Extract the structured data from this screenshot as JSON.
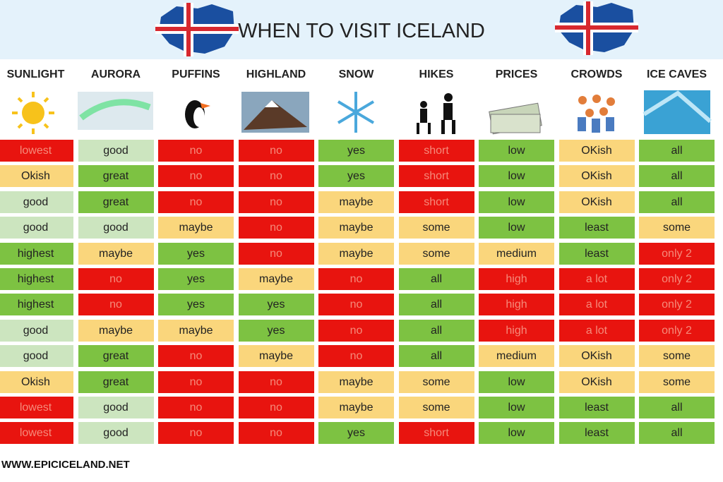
{
  "header": {
    "title": "WHEN TO VISIT ICELAND"
  },
  "table": {
    "columns": [
      "SUNLIGHT",
      "AURORA",
      "PUFFINS",
      "HIGHLAND",
      "SNOW",
      "HIKES",
      "PRICES",
      "CROWDS",
      "ICE CAVES"
    ],
    "rows": [
      [
        "lowest",
        "good",
        "no",
        "no",
        "yes",
        "short",
        "low",
        "OKish",
        "all"
      ],
      [
        "Okish",
        "great",
        "no",
        "no",
        "yes",
        "short",
        "low",
        "OKish",
        "all"
      ],
      [
        "good",
        "great",
        "no",
        "no",
        "maybe",
        "short",
        "low",
        "OKish",
        "all"
      ],
      [
        "good",
        "good",
        "maybe",
        "no",
        "maybe",
        "some",
        "low",
        "least",
        "some"
      ],
      [
        "highest",
        "maybe",
        "yes",
        "no",
        "maybe",
        "some",
        "medium",
        "least",
        "only 2"
      ],
      [
        "highest",
        "no",
        "yes",
        "maybe",
        "no",
        "all",
        "high",
        "a lot",
        "only 2"
      ],
      [
        "highest",
        "no",
        "yes",
        "yes",
        "no",
        "all",
        "high",
        "a lot",
        "only 2"
      ],
      [
        "good",
        "maybe",
        "maybe",
        "yes",
        "no",
        "all",
        "high",
        "a lot",
        "only 2"
      ],
      [
        "good",
        "great",
        "no",
        "maybe",
        "no",
        "all",
        "medium",
        "OKish",
        "some"
      ],
      [
        "Okish",
        "great",
        "no",
        "no",
        "maybe",
        "some",
        "low",
        "OKish",
        "some"
      ],
      [
        "lowest",
        "good",
        "no",
        "no",
        "maybe",
        "some",
        "low",
        "least",
        "all"
      ],
      [
        "lowest",
        "good",
        "no",
        "no",
        "yes",
        "short",
        "low",
        "least",
        "all"
      ]
    ],
    "row_colors": [
      [
        "#e8140f",
        "#cce5bf",
        "#e8140f",
        "#e8140f",
        "#7dc242",
        "#e8140f",
        "#7dc242",
        "#fad67c",
        "#7dc242"
      ],
      [
        "#fad67c",
        "#7dc242",
        "#e8140f",
        "#e8140f",
        "#7dc242",
        "#e8140f",
        "#7dc242",
        "#fad67c",
        "#7dc242"
      ],
      [
        "#cce5bf",
        "#7dc242",
        "#e8140f",
        "#e8140f",
        "#fad67c",
        "#e8140f",
        "#7dc242",
        "#fad67c",
        "#7dc242"
      ],
      [
        "#cce5bf",
        "#cce5bf",
        "#fad67c",
        "#e8140f",
        "#fad67c",
        "#fad67c",
        "#7dc242",
        "#7dc242",
        "#fad67c"
      ],
      [
        "#7dc242",
        "#fad67c",
        "#7dc242",
        "#e8140f",
        "#fad67c",
        "#fad67c",
        "#fad67c",
        "#7dc242",
        "#e8140f"
      ],
      [
        "#7dc242",
        "#e8140f",
        "#7dc242",
        "#fad67c",
        "#e8140f",
        "#7dc242",
        "#e8140f",
        "#e8140f",
        "#e8140f"
      ],
      [
        "#7dc242",
        "#e8140f",
        "#7dc242",
        "#7dc242",
        "#e8140f",
        "#7dc242",
        "#e8140f",
        "#e8140f",
        "#e8140f"
      ],
      [
        "#cce5bf",
        "#fad67c",
        "#fad67c",
        "#7dc242",
        "#e8140f",
        "#7dc242",
        "#e8140f",
        "#e8140f",
        "#e8140f"
      ],
      [
        "#cce5bf",
        "#7dc242",
        "#e8140f",
        "#fad67c",
        "#e8140f",
        "#7dc242",
        "#fad67c",
        "#fad67c",
        "#fad67c"
      ],
      [
        "#fad67c",
        "#7dc242",
        "#e8140f",
        "#e8140f",
        "#fad67c",
        "#fad67c",
        "#7dc242",
        "#fad67c",
        "#fad67c"
      ],
      [
        "#e8140f",
        "#cce5bf",
        "#e8140f",
        "#e8140f",
        "#fad67c",
        "#fad67c",
        "#7dc242",
        "#7dc242",
        "#7dc242"
      ],
      [
        "#e8140f",
        "#cce5bf",
        "#e8140f",
        "#e8140f",
        "#7dc242",
        "#e8140f",
        "#7dc242",
        "#7dc242",
        "#7dc242"
      ]
    ]
  },
  "footer": {
    "url": "WWW.EPICICELAND.NET"
  }
}
